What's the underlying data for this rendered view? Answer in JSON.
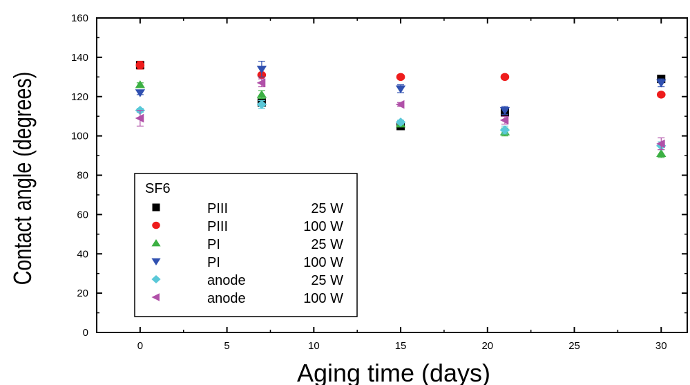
{
  "chart_data": {
    "type": "scatter",
    "xlabel": "Aging time (days)",
    "ylabel": "Contact angle (degrees)",
    "xlim": [
      -2.5,
      31.5
    ],
    "ylim": [
      0,
      160
    ],
    "xticks": [
      0,
      5,
      10,
      15,
      20,
      25,
      30
    ],
    "yticks": [
      0,
      20,
      40,
      60,
      80,
      100,
      120,
      140,
      160
    ],
    "grid": false,
    "legend": {
      "title": "SF6",
      "placement": "bottom-left"
    },
    "series": [
      {
        "label": "PIII",
        "power": "25 W",
        "marker": "square",
        "color": "#000000",
        "x": [
          0,
          7,
          15,
          21,
          30
        ],
        "y": [
          136,
          117,
          105,
          112,
          129
        ],
        "err": [
          2,
          2,
          1,
          2,
          1
        ]
      },
      {
        "label": "PIII",
        "power": "100 W",
        "marker": "circle",
        "color": "#ee1c1c",
        "x": [
          0,
          7,
          15,
          21,
          30
        ],
        "y": [
          136,
          131,
          130,
          130,
          121
        ],
        "err": [
          2,
          1,
          1,
          1,
          1
        ]
      },
      {
        "label": "PI",
        "power": "25 W",
        "marker": "triangle-up",
        "color": "#3cb043",
        "x": [
          0,
          7,
          15,
          21,
          30
        ],
        "y": [
          126,
          121,
          106,
          102,
          91
        ],
        "err": [
          1,
          2,
          1,
          2,
          2
        ]
      },
      {
        "label": "PI",
        "power": "100 W",
        "marker": "triangle-down",
        "color": "#3050b0",
        "x": [
          0,
          7,
          15,
          21,
          30
        ],
        "y": [
          122,
          134,
          124,
          113,
          127
        ],
        "err": [
          1,
          4,
          2,
          2,
          2
        ]
      },
      {
        "label": "anode",
        "power": "25 W",
        "marker": "diamond",
        "color": "#5ac8d8",
        "x": [
          0,
          7,
          15,
          21,
          30
        ],
        "y": [
          113,
          116,
          107,
          103,
          95
        ],
        "err": [
          1,
          2,
          1,
          2,
          2
        ]
      },
      {
        "label": "anode",
        "power": "100 W",
        "marker": "triangle-left",
        "color": "#b050a8",
        "x": [
          0,
          7,
          15,
          21,
          30
        ],
        "y": [
          109,
          127,
          116,
          108,
          96
        ],
        "err": [
          4,
          2,
          1,
          2,
          3
        ]
      }
    ]
  }
}
